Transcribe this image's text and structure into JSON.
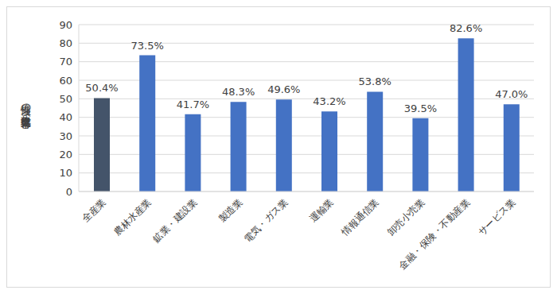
{
  "chart_data": {
    "type": "bar",
    "y_label": "男性の育児休業取得率（%）",
    "categories": [
      "全産業",
      "農林水産業",
      "鉱業・建設業",
      "製造業",
      "電気・ガス業",
      "運輸業",
      "情報通信業",
      "卸売小売業",
      "金融・保険・不動産業",
      "サービス業"
    ],
    "values": [
      50.4,
      73.5,
      41.7,
      48.3,
      49.6,
      43.2,
      53.8,
      39.5,
      82.6,
      47.0
    ],
    "value_labels": [
      "50.4%",
      "73.5%",
      "41.7%",
      "48.3%",
      "49.6%",
      "43.2%",
      "53.8%",
      "39.5%",
      "82.6%",
      "47.0%"
    ],
    "colors": [
      "#44546a",
      "#4472c4",
      "#4472c4",
      "#4472c4",
      "#4472c4",
      "#4472c4",
      "#4472c4",
      "#4472c4",
      "#4472c4",
      "#4472c4"
    ],
    "ylim": [
      0,
      90
    ],
    "yticks": [
      0,
      10,
      20,
      30,
      40,
      50,
      60,
      70,
      80,
      90
    ],
    "grid": true,
    "data_labels": true
  }
}
